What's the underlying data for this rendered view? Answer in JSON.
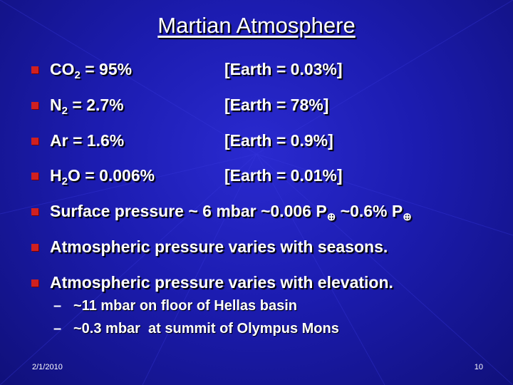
{
  "title": "Martian Atmosphere",
  "bullets": [
    {
      "runs": [
        {
          "text": "CO"
        },
        {
          "text": "2",
          "sub": true
        },
        {
          "text": " = 95%"
        }
      ],
      "earth": "[Earth = 0.03%]"
    },
    {
      "runs": [
        {
          "text": "N"
        },
        {
          "text": "2",
          "sub": true
        },
        {
          "text": " = 2.7%"
        }
      ],
      "earth": "[Earth = 78%]"
    },
    {
      "runs": [
        {
          "text": "Ar = 1.6%"
        }
      ],
      "earth": "[Earth = 0.9%]"
    },
    {
      "runs": [
        {
          "text": "H"
        },
        {
          "text": "2",
          "sub": true
        },
        {
          "text": "O = 0.006%"
        }
      ],
      "earth": "[Earth = 0.01%]"
    },
    {
      "runs": [
        {
          "text": "Surface pressure ~ 6 mbar ~0.006 P"
        },
        {
          "text": "⊕",
          "sub": true
        },
        {
          "text": " ~0.6% P"
        },
        {
          "text": "⊕",
          "sub": true
        }
      ]
    },
    {
      "runs": [
        {
          "text": "Atmospheric pressure varies with seasons."
        }
      ]
    },
    {
      "runs": [
        {
          "text": "Atmospheric pressure varies with elevation."
        }
      ],
      "subbullets": [
        "~11 mbar on floor of Hellas basin",
        "~0.3 mbar  at summit of Olympus Mons"
      ]
    }
  ],
  "footer": {
    "date": "2/1/2010",
    "page": "10"
  }
}
